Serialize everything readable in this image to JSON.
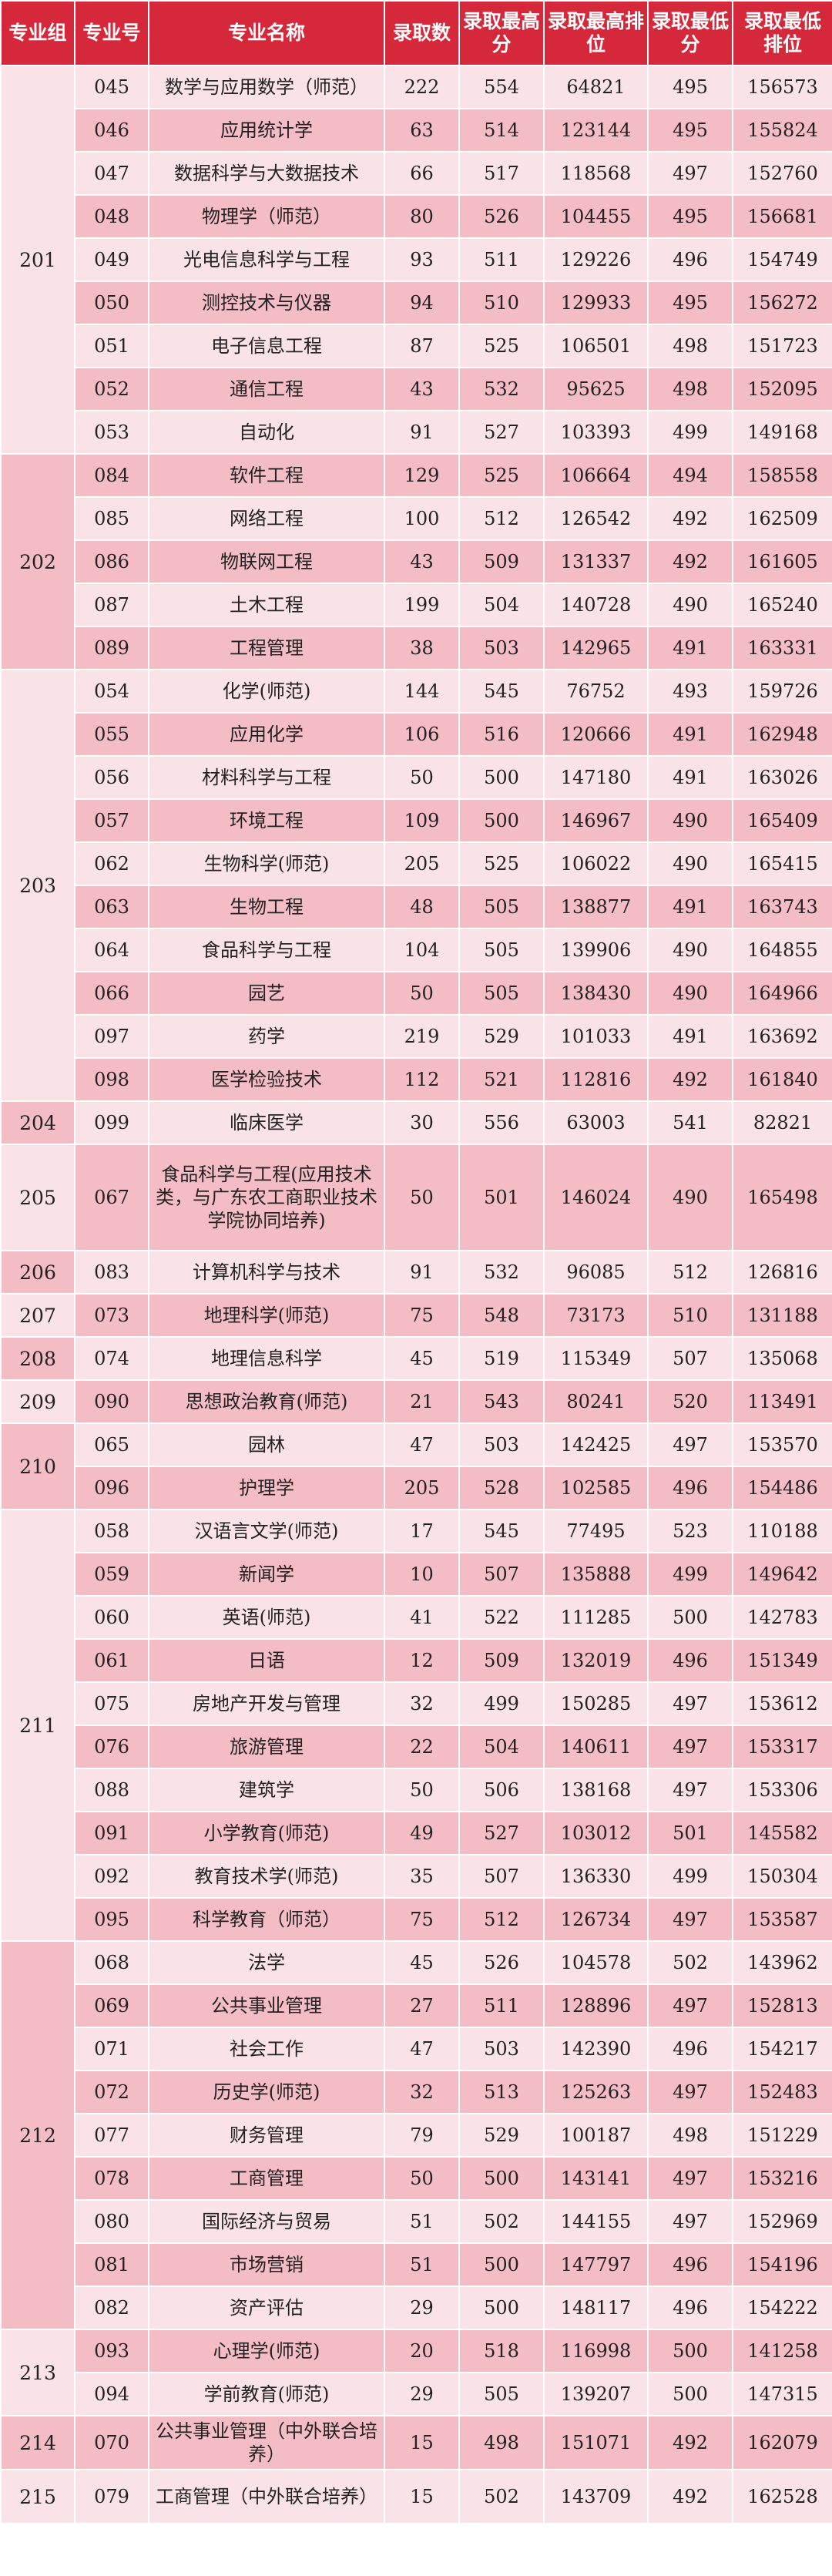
{
  "headers": [
    "专业组",
    "专业号",
    "专业名称",
    "录取数",
    "录取最高分",
    "录取最高排位",
    "录取最低分",
    "录取最低排位"
  ],
  "groups": [
    {
      "code": "201",
      "rows": [
        [
          "045",
          "数学与应用数学（师范）",
          "222",
          "554",
          "64821",
          "495",
          "156573"
        ],
        [
          "046",
          "应用统计学",
          "63",
          "514",
          "123144",
          "495",
          "155824"
        ],
        [
          "047",
          "数据科学与大数据技术",
          "66",
          "517",
          "118568",
          "497",
          "152760"
        ],
        [
          "048",
          "物理学（师范）",
          "80",
          "526",
          "104455",
          "495",
          "156681"
        ],
        [
          "049",
          "光电信息科学与工程",
          "93",
          "511",
          "129226",
          "496",
          "154749"
        ],
        [
          "050",
          "测控技术与仪器",
          "94",
          "510",
          "129933",
          "495",
          "156272"
        ],
        [
          "051",
          "电子信息工程",
          "87",
          "525",
          "106501",
          "498",
          "151723"
        ],
        [
          "052",
          "通信工程",
          "43",
          "532",
          "95625",
          "498",
          "152095"
        ],
        [
          "053",
          "自动化",
          "91",
          "527",
          "103393",
          "499",
          "149168"
        ]
      ]
    },
    {
      "code": "202",
      "rows": [
        [
          "084",
          "软件工程",
          "129",
          "525",
          "106664",
          "494",
          "158558"
        ],
        [
          "085",
          "网络工程",
          "100",
          "512",
          "126542",
          "492",
          "162509"
        ],
        [
          "086",
          "物联网工程",
          "43",
          "509",
          "131337",
          "492",
          "161605"
        ],
        [
          "087",
          "土木工程",
          "199",
          "504",
          "140728",
          "490",
          "165240"
        ],
        [
          "089",
          "工程管理",
          "38",
          "503",
          "142965",
          "491",
          "163331"
        ]
      ]
    },
    {
      "code": "203",
      "rows": [
        [
          "054",
          "化学(师范)",
          "144",
          "545",
          "76752",
          "493",
          "159726"
        ],
        [
          "055",
          "应用化学",
          "106",
          "516",
          "120666",
          "491",
          "162948"
        ],
        [
          "056",
          "材料科学与工程",
          "50",
          "500",
          "147180",
          "491",
          "163026"
        ],
        [
          "057",
          "环境工程",
          "109",
          "500",
          "146967",
          "490",
          "165409"
        ],
        [
          "062",
          "生物科学(师范)",
          "205",
          "525",
          "106022",
          "490",
          "165415"
        ],
        [
          "063",
          "生物工程",
          "48",
          "505",
          "138877",
          "491",
          "163743"
        ],
        [
          "064",
          "食品科学与工程",
          "104",
          "505",
          "139906",
          "490",
          "164855"
        ],
        [
          "066",
          "园艺",
          "50",
          "505",
          "138430",
          "490",
          "164966"
        ],
        [
          "097",
          "药学",
          "219",
          "529",
          "101033",
          "491",
          "163692"
        ],
        [
          "098",
          "医学检验技术",
          "112",
          "521",
          "112816",
          "492",
          "161840"
        ]
      ]
    },
    {
      "code": "204",
      "rows": [
        [
          "099",
          "临床医学",
          "30",
          "556",
          "63003",
          "541",
          "82821"
        ]
      ]
    },
    {
      "code": "205",
      "rows": [
        [
          "067",
          "食品科学与工程(应用技术类，与广东农工商职业技术学院协同培养)",
          "50",
          "501",
          "146024",
          "490",
          "165498"
        ]
      ]
    },
    {
      "code": "206",
      "rows": [
        [
          "083",
          "计算机科学与技术",
          "91",
          "532",
          "96085",
          "512",
          "126816"
        ]
      ]
    },
    {
      "code": "207",
      "rows": [
        [
          "073",
          "地理科学(师范)",
          "75",
          "548",
          "73173",
          "510",
          "131188"
        ]
      ]
    },
    {
      "code": "208",
      "rows": [
        [
          "074",
          "地理信息科学",
          "45",
          "519",
          "115349",
          "507",
          "135068"
        ]
      ]
    },
    {
      "code": "209",
      "rows": [
        [
          "090",
          "思想政治教育(师范)",
          "21",
          "543",
          "80241",
          "520",
          "113491"
        ]
      ]
    },
    {
      "code": "210",
      "rows": [
        [
          "065",
          "园林",
          "47",
          "503",
          "142425",
          "497",
          "153570"
        ],
        [
          "096",
          "护理学",
          "205",
          "528",
          "102585",
          "496",
          "154486"
        ]
      ]
    },
    {
      "code": "211",
      "rows": [
        [
          "058",
          "汉语言文学(师范)",
          "17",
          "545",
          "77495",
          "523",
          "110188"
        ],
        [
          "059",
          "新闻学",
          "10",
          "507",
          "135888",
          "499",
          "149642"
        ],
        [
          "060",
          "英语(师范)",
          "41",
          "522",
          "111285",
          "500",
          "142783"
        ],
        [
          "061",
          "日语",
          "12",
          "509",
          "132019",
          "496",
          "151349"
        ],
        [
          "075",
          "房地产开发与管理",
          "32",
          "499",
          "150285",
          "497",
          "153612"
        ],
        [
          "076",
          "旅游管理",
          "22",
          "504",
          "140611",
          "497",
          "153317"
        ],
        [
          "088",
          "建筑学",
          "50",
          "506",
          "138168",
          "497",
          "153306"
        ],
        [
          "091",
          "小学教育(师范)",
          "49",
          "527",
          "103012",
          "501",
          "145582"
        ],
        [
          "092",
          "教育技术学(师范)",
          "35",
          "507",
          "136330",
          "499",
          "150304"
        ],
        [
          "095",
          "科学教育（师范）",
          "75",
          "512",
          "126734",
          "497",
          "153587"
        ]
      ]
    },
    {
      "code": "212",
      "rows": [
        [
          "068",
          "法学",
          "45",
          "526",
          "104578",
          "502",
          "143962"
        ],
        [
          "069",
          "公共事业管理",
          "27",
          "511",
          "128896",
          "497",
          "152813"
        ],
        [
          "071",
          "社会工作",
          "47",
          "503",
          "142390",
          "496",
          "154217"
        ],
        [
          "072",
          "历史学(师范)",
          "32",
          "513",
          "125263",
          "497",
          "152483"
        ],
        [
          "077",
          "财务管理",
          "79",
          "529",
          "100187",
          "498",
          "151229"
        ],
        [
          "078",
          "工商管理",
          "50",
          "500",
          "143141",
          "497",
          "153216"
        ],
        [
          "080",
          "国际经济与贸易",
          "51",
          "502",
          "144155",
          "497",
          "152969"
        ],
        [
          "081",
          "市场营销",
          "51",
          "500",
          "147797",
          "496",
          "154196"
        ],
        [
          "082",
          "资产评估",
          "29",
          "500",
          "148117",
          "496",
          "154222"
        ]
      ]
    },
    {
      "code": "213",
      "rows": [
        [
          "093",
          "心理学(师范)",
          "20",
          "518",
          "116998",
          "500",
          "141258"
        ],
        [
          "094",
          "学前教育(师范)",
          "29",
          "505",
          "139207",
          "500",
          "147315"
        ]
      ]
    },
    {
      "code": "214",
      "rows": [
        [
          "070",
          "公共事业管理（中外联合培养）",
          "15",
          "498",
          "151071",
          "492",
          "162079"
        ]
      ]
    },
    {
      "code": "215",
      "rows": [
        [
          "079",
          "工商管理（中外联合培养）",
          "15",
          "502",
          "143709",
          "492",
          "162528"
        ]
      ]
    }
  ]
}
